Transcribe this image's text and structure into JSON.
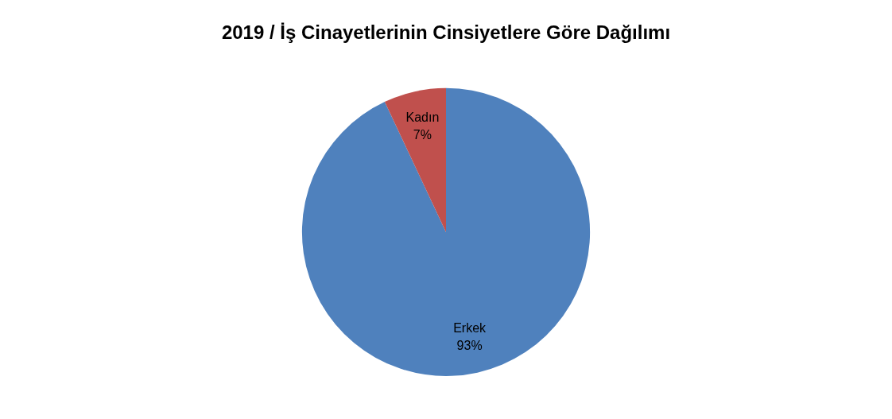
{
  "chart_data": {
    "type": "pie",
    "title": "2019 / İş Cinayetlerinin Cinsiyetlere Göre Dağılımı",
    "categories": [
      "Erkek",
      "Kadın"
    ],
    "values": [
      93,
      7
    ],
    "colors": [
      "#4f81bd",
      "#c0504d"
    ],
    "value_labels": [
      "93%",
      "7%"
    ],
    "legend": false
  }
}
